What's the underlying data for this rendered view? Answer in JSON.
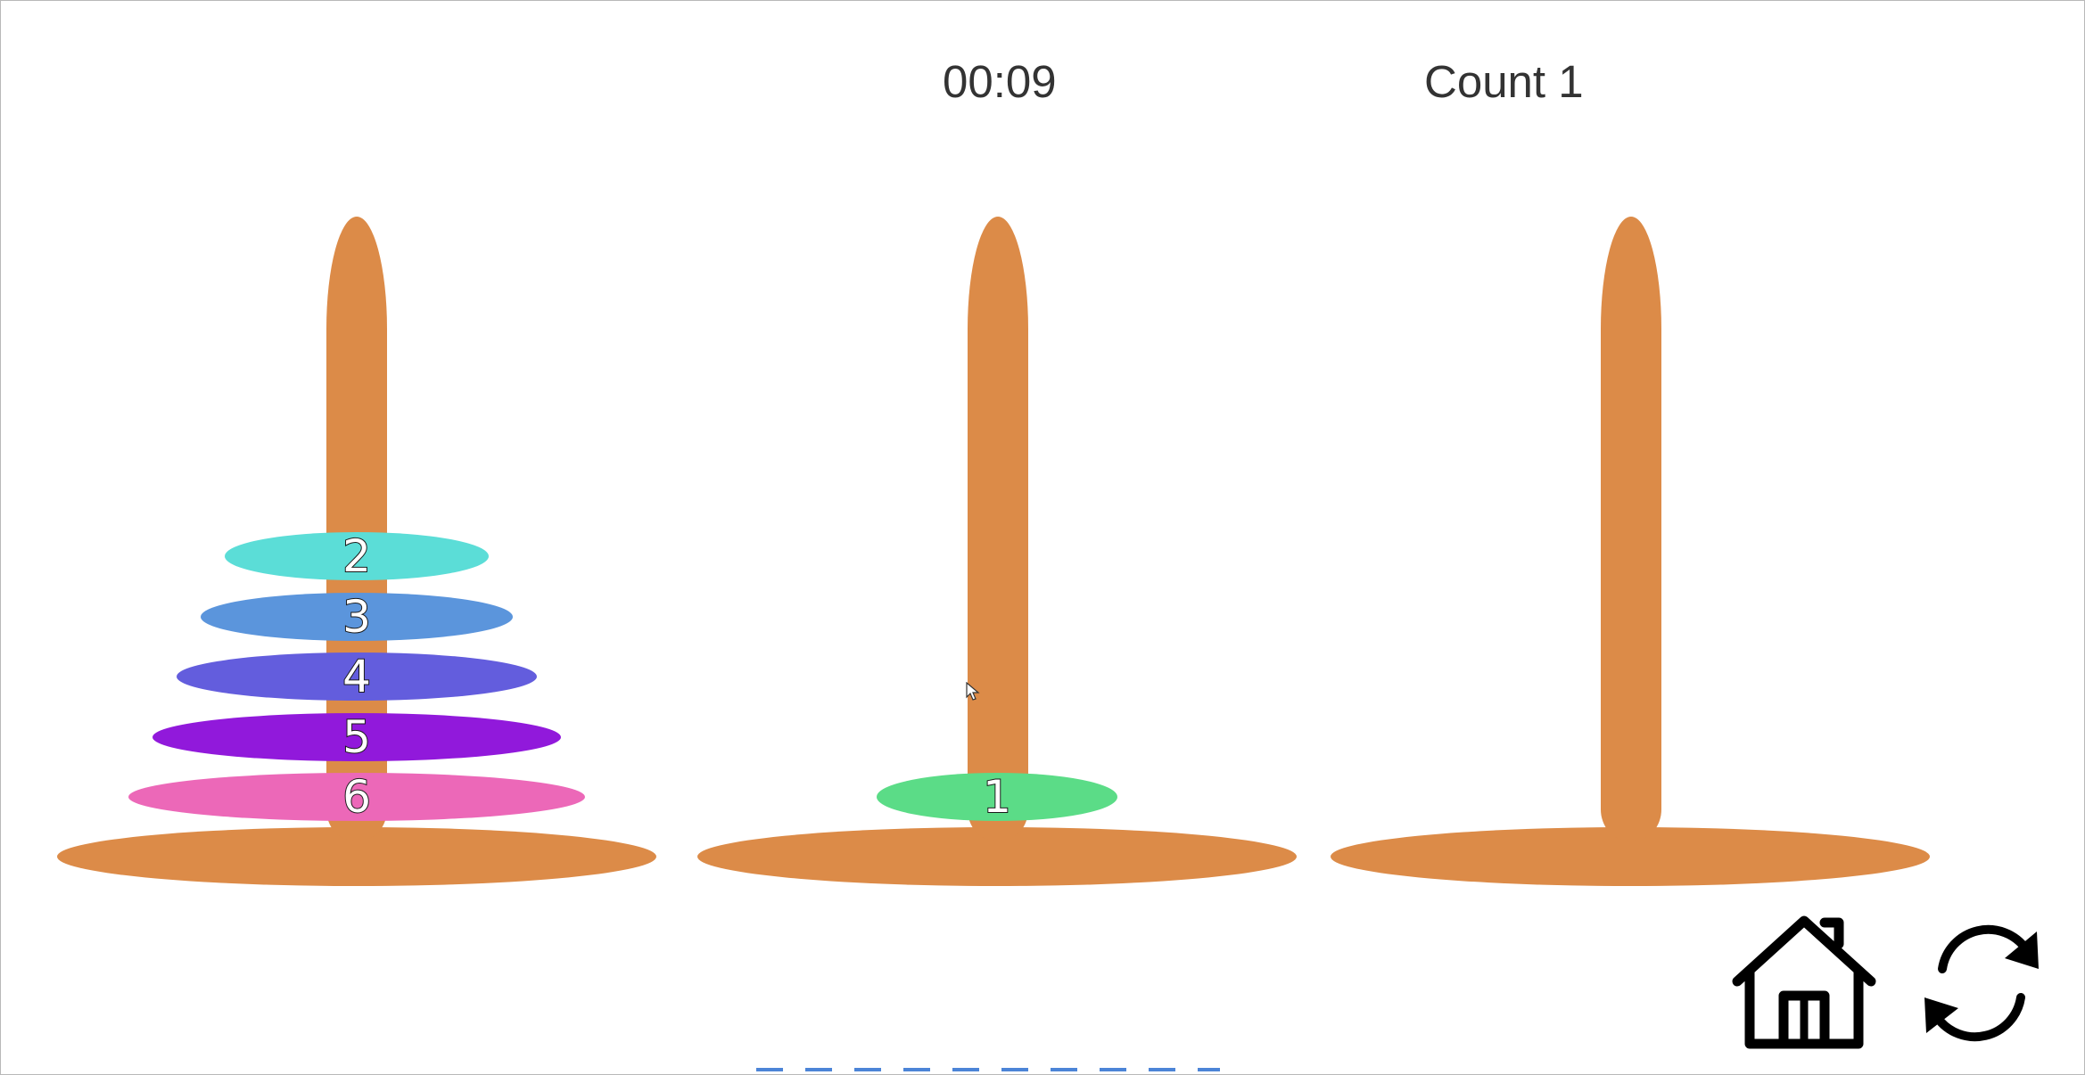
{
  "hud": {
    "timer": "00:09",
    "count": "Count 1"
  },
  "colors": {
    "wood": "#dc8b48",
    "background": "#ffffff",
    "hud_text": "#333333"
  },
  "towers": [
    {
      "name": "left",
      "disks": [
        "2",
        "3",
        "4",
        "5",
        "6"
      ]
    },
    {
      "name": "middle",
      "disks": [
        "1"
      ]
    },
    {
      "name": "right",
      "disks": []
    }
  ],
  "disks": [
    {
      "label": "1",
      "color": "#5bdc87",
      "tower": "middle"
    },
    {
      "label": "2",
      "color": "#5bddd7",
      "tower": "left"
    },
    {
      "label": "3",
      "color": "#5b95dc",
      "tower": "left"
    },
    {
      "label": "4",
      "color": "#635ddd",
      "tower": "left"
    },
    {
      "label": "5",
      "color": "#9119db",
      "tower": "left"
    },
    {
      "label": "6",
      "color": "#ec68b8",
      "tower": "left"
    }
  ],
  "controls": {
    "home_icon": "house-icon",
    "restart_icon": "refresh-arrows-icon"
  }
}
